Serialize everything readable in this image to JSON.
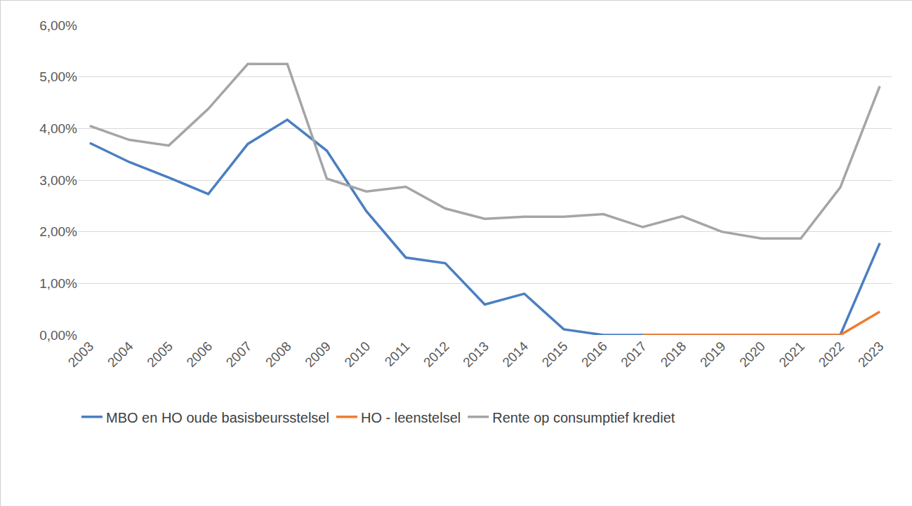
{
  "chart_data": {
    "type": "line",
    "categories": [
      "2003",
      "2004",
      "2005",
      "2006",
      "2007",
      "2008",
      "2009",
      "2010",
      "2011",
      "2012",
      "2013",
      "2014",
      "2015",
      "2016",
      "2017",
      "2018",
      "2019",
      "2020",
      "2021",
      "2022",
      "2023"
    ],
    "series": [
      {
        "name": "MBO en HO oude basisbeursstelsel",
        "color": "#4a7fc1",
        "values": [
          3.72,
          3.35,
          3.05,
          2.73,
          3.7,
          4.17,
          3.57,
          2.4,
          1.5,
          1.39,
          0.59,
          0.8,
          0.11,
          0.0,
          0.0,
          0.0,
          0.0,
          0.0,
          0.0,
          0.0,
          1.78
        ]
      },
      {
        "name": "HO - leenstelsel",
        "color": "#ed7d31",
        "values": [
          null,
          null,
          null,
          null,
          null,
          null,
          null,
          null,
          null,
          null,
          null,
          null,
          null,
          null,
          0.0,
          0.0,
          0.0,
          0.0,
          0.0,
          0.0,
          0.45
        ]
      },
      {
        "name": "Rente op consumptief krediet",
        "color": "#a5a5a5",
        "values": [
          4.05,
          3.78,
          3.67,
          4.38,
          5.25,
          5.25,
          3.03,
          2.78,
          2.87,
          2.45,
          2.25,
          2.29,
          2.29,
          2.34,
          2.09,
          2.3,
          2.0,
          1.87,
          1.87,
          2.86,
          4.82
        ]
      }
    ],
    "ylim": [
      0,
      6
    ],
    "yticks": [
      {
        "value": 0,
        "label": "0,00%"
      },
      {
        "value": 1,
        "label": "1,00%"
      },
      {
        "value": 2,
        "label": "2,00%"
      },
      {
        "value": 3,
        "label": "3,00%"
      },
      {
        "value": 4,
        "label": "4,00%"
      },
      {
        "value": 5,
        "label": "5,00%"
      },
      {
        "value": 6,
        "label": "6,00%"
      }
    ],
    "grid": true,
    "legend": "bottom"
  }
}
